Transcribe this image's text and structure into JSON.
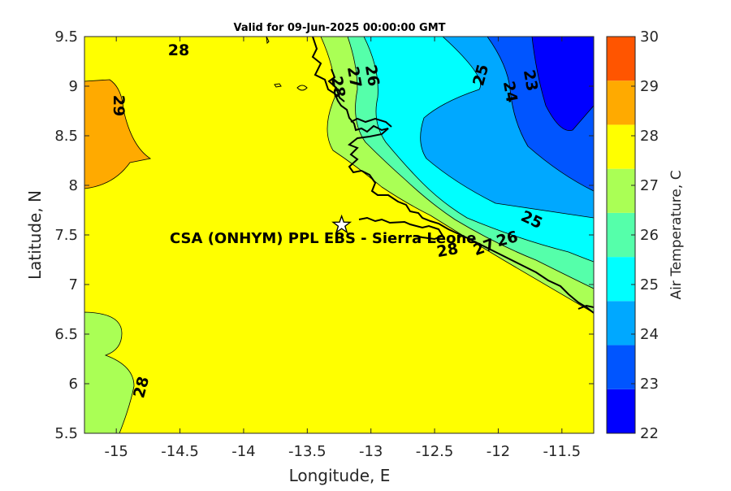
{
  "title": "Valid for 09-Jun-2025 00:00:00 GMT",
  "x_axis": {
    "label": "Longitude, E",
    "range": [
      -15.25,
      -11.25
    ],
    "ticks": [
      "-15",
      "-14.5",
      "-14",
      "-13.5",
      "-13",
      "-12.5",
      "-12",
      "-11.5"
    ]
  },
  "y_axis": {
    "label": "Latitude, N",
    "range": [
      5.5,
      9.5
    ],
    "ticks": [
      "5.5",
      "6",
      "6.5",
      "7",
      "7.5",
      "8",
      "8.5",
      "9",
      "9.5"
    ]
  },
  "colorbar": {
    "label": "Air Temperature, C",
    "range": [
      22,
      30
    ],
    "ticks": [
      "22",
      "23",
      "24",
      "25",
      "26",
      "27",
      "28",
      "29",
      "30"
    ],
    "colors": [
      "#0000ff",
      "#0055ff",
      "#00a8ff",
      "#00ffff",
      "#55ffaa",
      "#aaff55",
      "#ffff00",
      "#ffaa00",
      "#ff5500"
    ]
  },
  "contour_labels": [
    "28",
    "29",
    "28",
    "27",
    "28",
    "26",
    "25",
    "24",
    "23",
    "25",
    "27",
    "26",
    "28"
  ],
  "site": {
    "name": "CSA (ONHYM) PPL EBS - Sierra Leone",
    "lon": -13.23,
    "lat": 7.6,
    "marker": "star-icon"
  },
  "chart_data": {
    "type": "heatmap",
    "title": "Valid for 09-Jun-2025 00:00:00 GMT",
    "xlabel": "Longitude, E",
    "ylabel": "Latitude, N",
    "xlim": [
      -15.25,
      -11.25
    ],
    "ylim": [
      5.5,
      9.5
    ],
    "colorbar_label": "Air Temperature, C",
    "clim": [
      22,
      30
    ],
    "contour_levels": [
      23,
      24,
      25,
      26,
      27,
      28,
      29
    ],
    "grid": false
  }
}
